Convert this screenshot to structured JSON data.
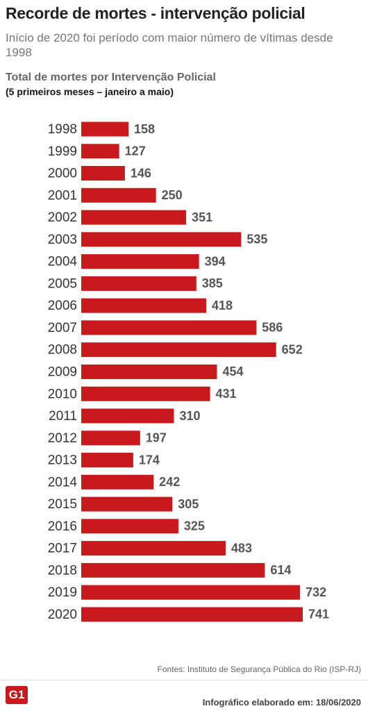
{
  "chart_data": {
    "type": "bar",
    "orientation": "horizontal",
    "title": "Recorde de mortes - intervenção policial",
    "subtitle": "Início de 2020 foi período com maior número de vítimas desde 1998",
    "chart_title": "Total de mortes por Intervenção Policial",
    "chart_subtitle": "(5 primeiros meses – janeiro a maio)",
    "categories": [
      "1998",
      "1999",
      "2000",
      "2001",
      "2002",
      "2003",
      "2004",
      "2005",
      "2006",
      "2007",
      "2008",
      "2009",
      "2010",
      "2011",
      "2012",
      "2013",
      "2014",
      "2015",
      "2016",
      "2017",
      "2018",
      "2019",
      "2020"
    ],
    "values": [
      158,
      127,
      146,
      250,
      351,
      535,
      394,
      385,
      418,
      586,
      652,
      454,
      431,
      310,
      197,
      174,
      242,
      305,
      325,
      483,
      614,
      732,
      741
    ],
    "color": "#c8191c",
    "source": "Fontes: Instituto de Segurança Pública do Rio (ISP-RJ)",
    "logo": "G1",
    "credit": "Infográfico elaborado em: 18/06/2020"
  }
}
